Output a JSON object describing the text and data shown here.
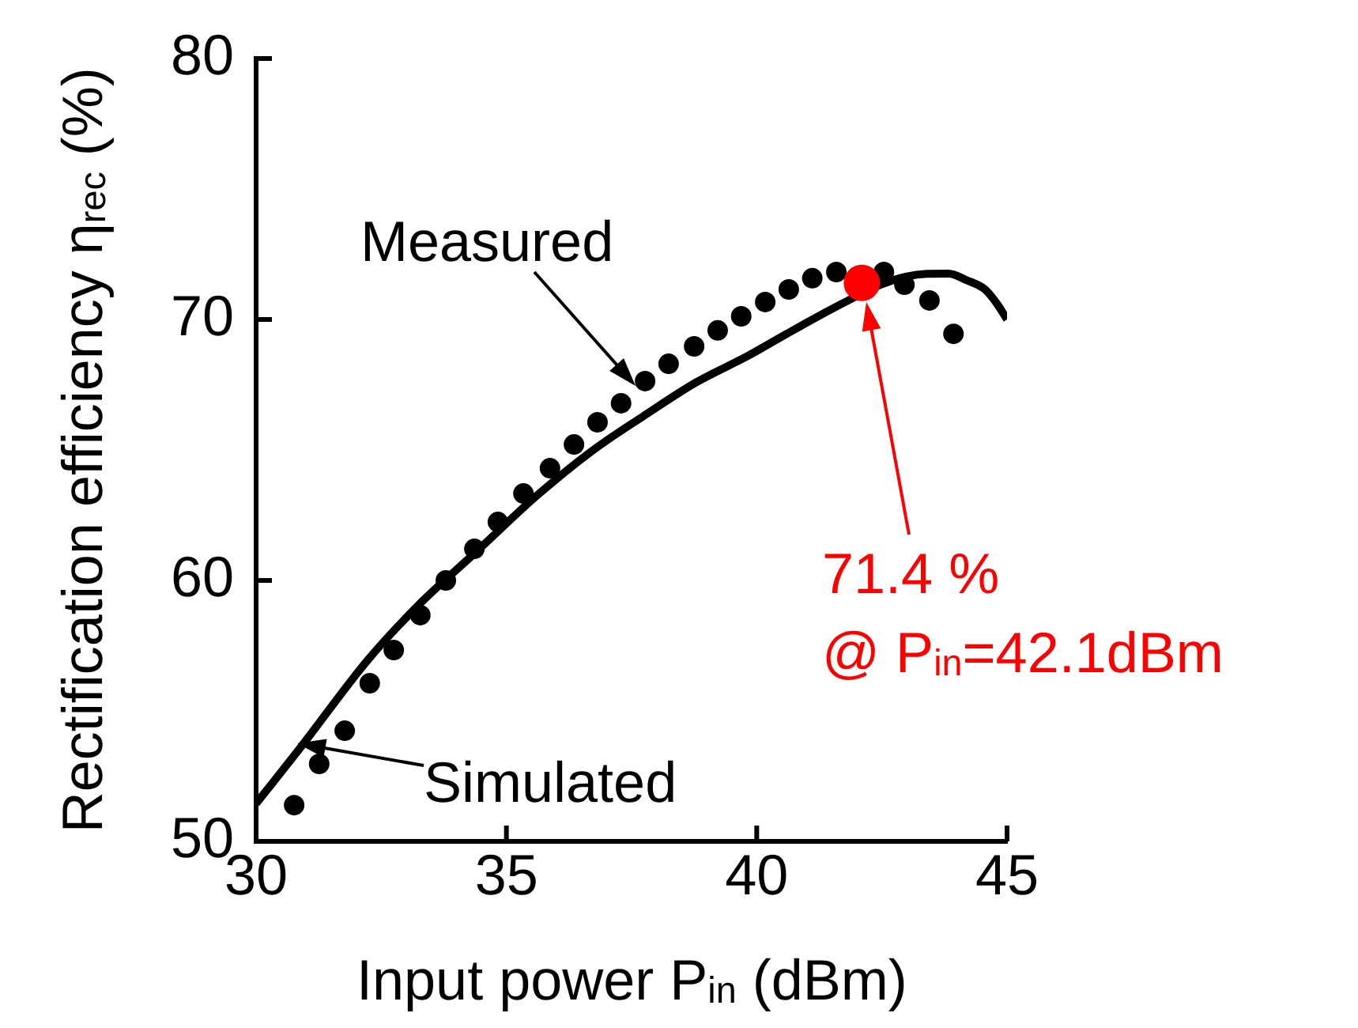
{
  "chart_data": {
    "type": "scatter",
    "xlabel": "Input power P$_{in}$ (dBm)",
    "ylabel": "Rectification efficiency η$_{rec}$ (%)",
    "xlim": [
      30,
      45
    ],
    "xticks": [
      30,
      35,
      40,
      45
    ],
    "ylim": [
      50,
      80
    ],
    "yticks": [
      50,
      60,
      70,
      80
    ],
    "marker": "circle",
    "grid": false,
    "legend": false,
    "series": [
      {
        "type": "line",
        "marker": "none",
        "color": "#000000",
        "x": [
          30,
          30.88,
          32.24,
          33.32,
          34.36,
          35.62,
          36.7,
          37.74,
          38.8,
          39.82,
          40.6,
          41.4,
          41.9,
          42.47,
          42.98,
          43.4,
          43.83,
          44.2,
          44.56,
          44.8,
          45
        ],
        "values": [
          51.45,
          53.58,
          56.97,
          59.2,
          61.03,
          63.27,
          64.95,
          66.3,
          67.6,
          68.6,
          69.45,
          70.3,
          70.8,
          71.33,
          71.64,
          71.75,
          71.76,
          71.5,
          71.15,
          70.6,
          70.0
        ]
      },
      {
        "type": "scatter",
        "color": "#000000",
        "x": [
          30.76,
          31.26,
          31.77,
          32.27,
          32.75,
          33.28,
          33.79,
          34.36,
          34.83,
          35.34,
          35.87,
          36.35,
          36.82,
          37.29,
          37.77,
          38.24,
          38.75,
          39.22,
          39.69,
          40.17,
          40.64,
          41.11,
          41.59,
          42.54,
          42.95,
          43.45,
          43.93
        ],
        "values": [
          51.39,
          52.97,
          54.24,
          56.06,
          57.33,
          58.67,
          60.0,
          61.21,
          62.24,
          63.33,
          64.3,
          65.21,
          66.06,
          66.79,
          67.64,
          68.3,
          68.97,
          69.58,
          70.12,
          70.67,
          71.15,
          71.58,
          71.82,
          71.82,
          71.33,
          70.73,
          69.45
        ]
      },
      {
        "type": "scatter",
        "color": "#ff0000",
        "x": [
          42.1
        ],
        "values": [
          71.4
        ]
      }
    ],
    "annotations": [
      "Measured",
      "Simulated",
      "71.4 %\n@ P$_{in}$=42.1dBm"
    ]
  }
}
